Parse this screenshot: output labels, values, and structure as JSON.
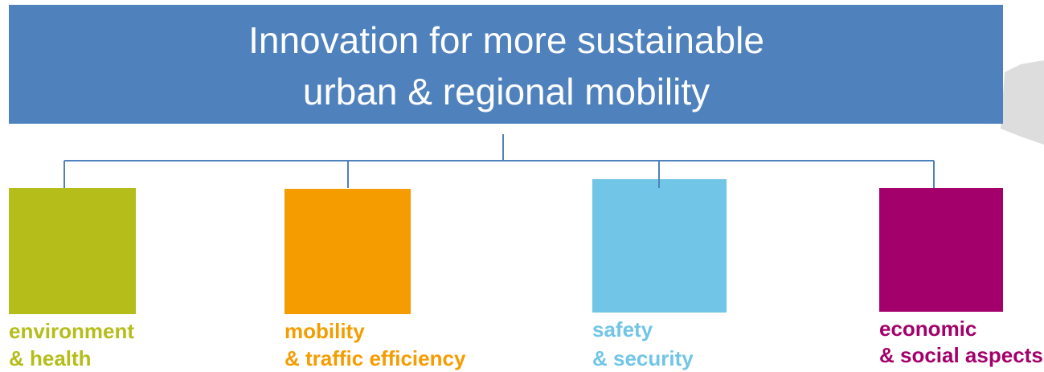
{
  "header": {
    "title_lines": [
      "Innovation for more sustainable",
      "urban & regional mobility"
    ]
  },
  "nodes": [
    {
      "label_lines": [
        "environment",
        "& health"
      ]
    },
    {
      "label_lines": [
        "mobility",
        "& traffic efficiency"
      ]
    },
    {
      "label_lines": [
        "safety",
        "& security"
      ]
    },
    {
      "label_lines": [
        "economic",
        "& social aspects"
      ]
    }
  ]
}
